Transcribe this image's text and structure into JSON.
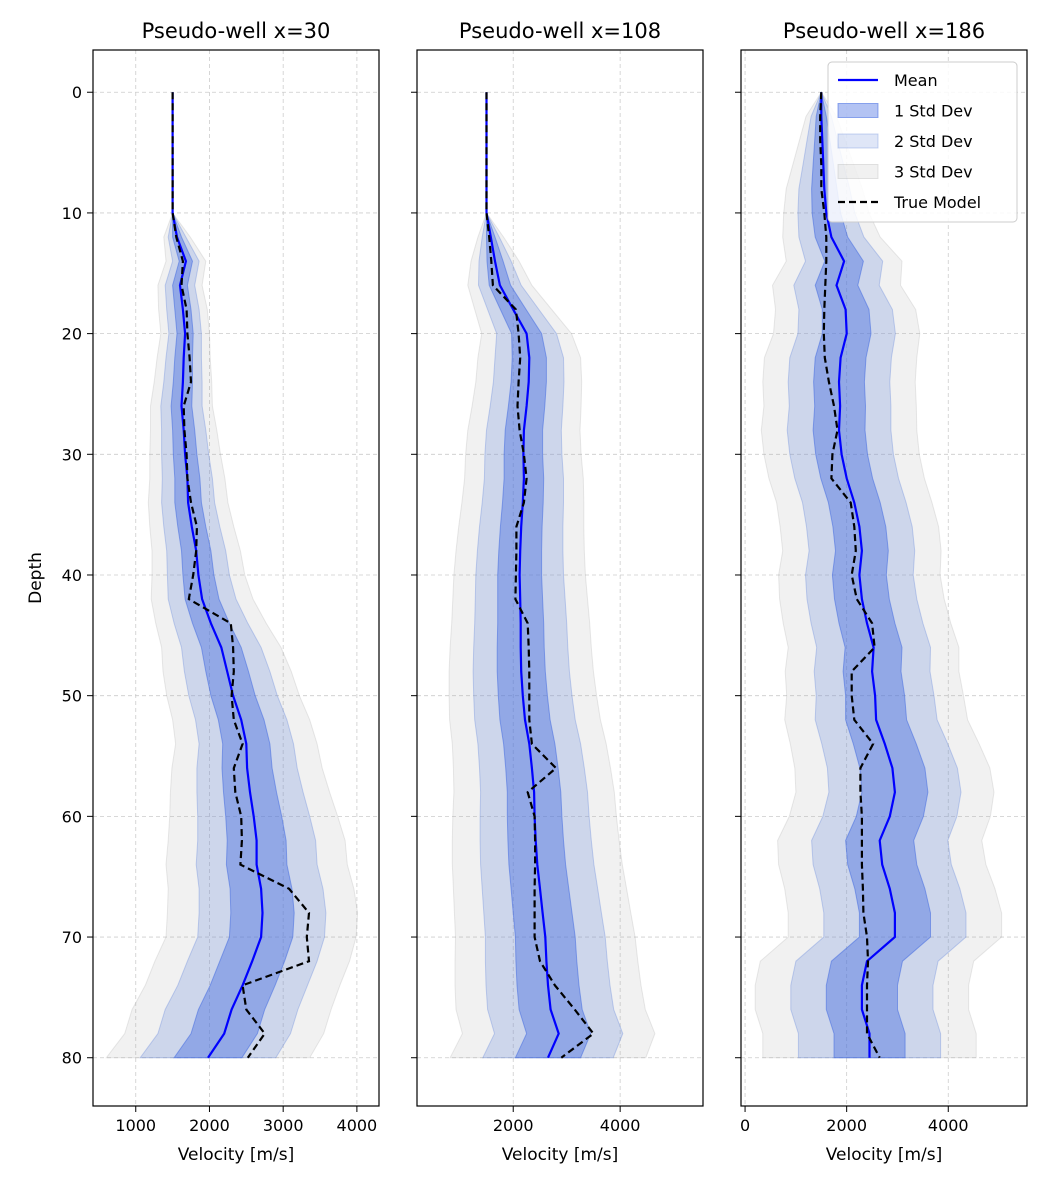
{
  "chart_data": [
    {
      "type": "line",
      "title": "Pseudo-well x=30",
      "xlabel": "Velocity [m/s]",
      "ylabel": "Depth",
      "xlim": [
        420,
        4300
      ],
      "xticks": [
        1000,
        2000,
        3000,
        4000
      ],
      "ylim": [
        84,
        -3.5
      ],
      "yticks": [
        0,
        10,
        20,
        30,
        40,
        50,
        60,
        70,
        80
      ],
      "grid": true,
      "depth": [
        0,
        2,
        4,
        6,
        8,
        10,
        12,
        14,
        16,
        18,
        20,
        22,
        24,
        26,
        28,
        30,
        32,
        34,
        36,
        38,
        40,
        42,
        44,
        46,
        48,
        50,
        52,
        54,
        56,
        58,
        60,
        62,
        64,
        66,
        68,
        70,
        72,
        74,
        76,
        78,
        80
      ],
      "std": [
        0,
        0,
        0,
        0,
        0,
        0,
        60,
        90,
        100,
        110,
        110,
        120,
        130,
        140,
        150,
        160,
        170,
        180,
        190,
        200,
        210,
        230,
        250,
        270,
        290,
        300,
        310,
        320,
        340,
        360,
        380,
        400,
        410,
        420,
        430,
        430,
        440,
        440,
        450,
        450,
        460
      ],
      "series": [
        {
          "name": "Mean",
          "values": [
            1500,
            1500,
            1500,
            1500,
            1500,
            1500,
            1560,
            1680,
            1600,
            1640,
            1670,
            1650,
            1640,
            1620,
            1650,
            1670,
            1700,
            1710,
            1760,
            1820,
            1850,
            1900,
            2020,
            2160,
            2240,
            2320,
            2430,
            2500,
            2510,
            2550,
            2600,
            2640,
            2640,
            2700,
            2720,
            2700,
            2580,
            2450,
            2300,
            2200,
            1980
          ]
        },
        {
          "name": "True Model",
          "values": [
            1500,
            1500,
            1500,
            1500,
            1500,
            1500,
            1550,
            1640,
            1620,
            1690,
            1700,
            1730,
            1750,
            1650,
            1660,
            1690,
            1700,
            1750,
            1830,
            1820,
            1780,
            1720,
            2290,
            2320,
            2330,
            2300,
            2330,
            2450,
            2330,
            2350,
            2430,
            2440,
            2420,
            3080,
            3350,
            3320,
            3350,
            2450,
            2500,
            2750,
            2520
          ]
        }
      ],
      "legend": null
    },
    {
      "type": "line",
      "title": "Pseudo-well x=108",
      "xlabel": "Velocity [m/s]",
      "ylabel": "",
      "xlim": [
        200,
        5550
      ],
      "xticks": [
        2000,
        4000
      ],
      "ylim": [
        84,
        -3.5
      ],
      "yticks": [
        0,
        10,
        20,
        30,
        40,
        50,
        60,
        70,
        80
      ],
      "grid": true,
      "depth": [
        0,
        2,
        4,
        6,
        8,
        10,
        12,
        14,
        16,
        18,
        20,
        22,
        24,
        26,
        28,
        30,
        32,
        34,
        36,
        38,
        40,
        42,
        44,
        46,
        48,
        50,
        52,
        54,
        56,
        58,
        60,
        62,
        64,
        66,
        68,
        70,
        72,
        74,
        76,
        78,
        80
      ],
      "std": [
        0,
        0,
        0,
        0,
        0,
        0,
        80,
        150,
        200,
        240,
        280,
        320,
        330,
        340,
        350,
        360,
        370,
        380,
        390,
        400,
        410,
        420,
        430,
        440,
        450,
        460,
        470,
        480,
        490,
        500,
        510,
        520,
        530,
        540,
        550,
        560,
        570,
        580,
        590,
        600,
        610
      ],
      "series": [
        {
          "name": "Mean",
          "values": [
            1500,
            1500,
            1500,
            1500,
            1500,
            1500,
            1580,
            1660,
            1750,
            2000,
            2250,
            2300,
            2290,
            2250,
            2200,
            2190,
            2200,
            2180,
            2150,
            2130,
            2120,
            2130,
            2140,
            2140,
            2150,
            2180,
            2220,
            2300,
            2350,
            2390,
            2400,
            2420,
            2450,
            2500,
            2550,
            2600,
            2620,
            2650,
            2700,
            2850,
            2650
          ]
        },
        {
          "name": "True Model",
          "values": [
            1500,
            1500,
            1500,
            1500,
            1500,
            1500,
            1550,
            1590,
            1620,
            2050,
            2100,
            2130,
            2100,
            2080,
            2120,
            2200,
            2250,
            2200,
            2060,
            2060,
            2050,
            2040,
            2270,
            2290,
            2300,
            2300,
            2300,
            2350,
            2800,
            2270,
            2400,
            2410,
            2410,
            2400,
            2400,
            2400,
            2500,
            2780,
            3150,
            3500,
            2900
          ]
        }
      ],
      "legend": null
    },
    {
      "type": "line",
      "title": "Pseudo-well x=186",
      "xlabel": "Velocity [m/s]",
      "ylabel": "",
      "xlim": [
        -80,
        5550
      ],
      "xticks": [
        0,
        2000,
        4000
      ],
      "ylim": [
        84,
        -3.5
      ],
      "yticks": [
        0,
        10,
        20,
        30,
        40,
        50,
        60,
        70,
        80
      ],
      "grid": true,
      "depth": [
        0,
        2,
        4,
        6,
        8,
        10,
        12,
        14,
        16,
        18,
        20,
        22,
        24,
        26,
        28,
        30,
        32,
        34,
        36,
        38,
        40,
        42,
        44,
        46,
        48,
        50,
        52,
        54,
        56,
        58,
        60,
        62,
        64,
        66,
        68,
        70,
        72,
        74,
        76,
        78,
        80
      ],
      "std": [
        0,
        100,
        150,
        200,
        250,
        280,
        320,
        380,
        420,
        460,
        480,
        500,
        500,
        500,
        510,
        510,
        510,
        510,
        520,
        520,
        530,
        540,
        550,
        560,
        570,
        580,
        600,
        620,
        640,
        650,
        660,
        670,
        680,
        690,
        700,
        700,
        700,
        700,
        700,
        700,
        700
      ],
      "series": [
        {
          "name": "Mean",
          "values": [
            1500,
            1500,
            1520,
            1540,
            1560,
            1600,
            1700,
            1950,
            1800,
            1980,
            2000,
            1880,
            1850,
            1870,
            1850,
            1900,
            2000,
            2150,
            2250,
            2300,
            2250,
            2300,
            2400,
            2530,
            2500,
            2560,
            2580,
            2750,
            2900,
            2950,
            2850,
            2650,
            2700,
            2850,
            2950,
            2950,
            2400,
            2300,
            2300,
            2450,
            2450
          ]
        },
        {
          "name": "True Model",
          "values": [
            1500,
            1480,
            1480,
            1500,
            1500,
            1560,
            1600,
            1600,
            1580,
            1560,
            1550,
            1570,
            1650,
            1750,
            1820,
            1720,
            1700,
            2080,
            2150,
            2180,
            2100,
            2200,
            2500,
            2550,
            2100,
            2100,
            2150,
            2520,
            2270,
            2270,
            2300,
            2300,
            2300,
            2320,
            2330,
            2400,
            2420,
            2400,
            2400,
            2400,
            2650
          ]
        }
      ],
      "legend": {
        "placement": "top-right",
        "entries": [
          {
            "label": "Mean",
            "kind": "line",
            "color": "#0000ff"
          },
          {
            "label": "1 Std Dev",
            "kind": "patch",
            "color": "#4169e1",
            "alpha": 0.4
          },
          {
            "label": "2 Std Dev",
            "kind": "patch",
            "color": "#6f8fdc",
            "alpha": 0.22
          },
          {
            "label": "3 Std Dev",
            "kind": "patch",
            "color": "#a9a9a9",
            "alpha": 0.16
          },
          {
            "label": "True Model",
            "kind": "dashed",
            "color": "#000000"
          }
        ]
      }
    }
  ],
  "colors": {
    "mean": "#0000ff",
    "true_model": "#000000",
    "std1": "#4169e1",
    "std2": "#6f8fdc",
    "std3": "#a9a9a9",
    "grid": "#cccccc"
  }
}
